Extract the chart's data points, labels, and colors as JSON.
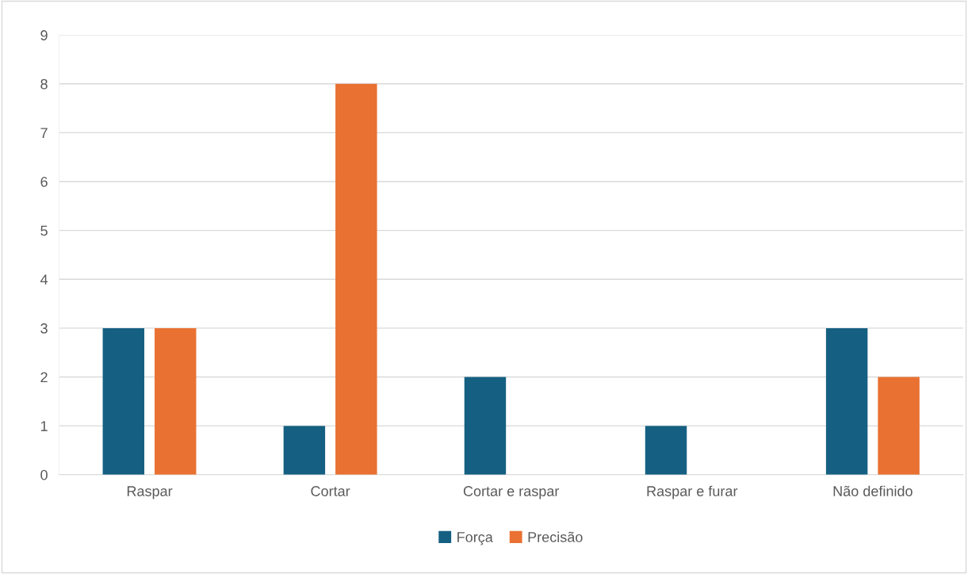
{
  "chart_data": {
    "type": "bar",
    "categories": [
      "Raspar",
      "Cortar",
      "Cortar e raspar",
      "Raspar e furar",
      "Não definido"
    ],
    "series": [
      {
        "name": "Força",
        "color": "#156082",
        "values": [
          3,
          1,
          2,
          1,
          3
        ]
      },
      {
        "name": "Precisão",
        "color": "#e97132",
        "values": [
          3,
          8,
          0,
          0,
          2
        ]
      }
    ],
    "ylim": [
      0,
      9
    ],
    "yticks": [
      0,
      1,
      2,
      3,
      4,
      5,
      6,
      7,
      8,
      9
    ],
    "grid": "y",
    "legend": "bottom"
  }
}
